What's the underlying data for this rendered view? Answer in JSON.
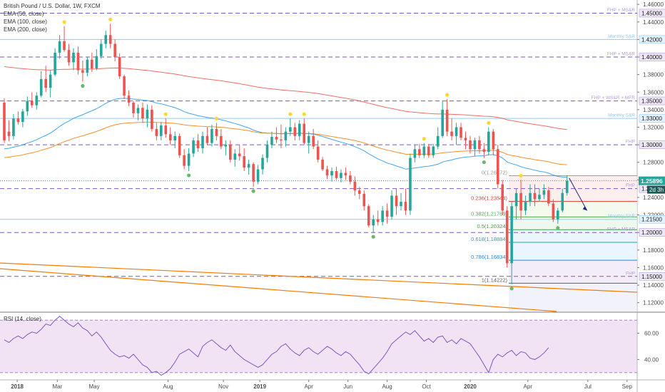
{
  "legend": {
    "title": "British Pound / U.S. Dollar, 1W, FXCM",
    "ema1": "EMA (50, close)",
    "ema2": "EMA (100, close)",
    "ema3": "EMA (200, close)"
  },
  "rsi_legend": "RSI (14, close)",
  "current_price_label": "1.25896",
  "countdown_label": "2d 3h",
  "colors": {
    "up": "#26a69a",
    "down": "#ef5350",
    "ema50": "#2196f3",
    "ema100": "#f57c00",
    "ema200": "#ef5350",
    "level_solid": "#90caf9",
    "level_dashed": "#7e57c2",
    "trendline": "#f57c00",
    "rsi": "#7e57c2",
    "rsi_band": "#e1bee7"
  },
  "chart_data": [
    {
      "type": "candlestick",
      "title": "British Pound / U.S. Dollar, 1W, FXCM",
      "x_ticks": [
        "2018",
        "Mar",
        "May",
        "Aug",
        "Nov",
        "2019",
        "Apr",
        "Jun",
        "Aug",
        "Oct",
        "2020",
        "Apr",
        "Jul",
        "Sep"
      ],
      "y_ticks": [
        "1.46000",
        "1.44000",
        "1.42000",
        "1.40000",
        "1.38000",
        "1.36000",
        "1.34000",
        "1.32000",
        "1.30000",
        "1.28000",
        "1.26000",
        "1.24000",
        "1.22000",
        "1.20000",
        "1.18000",
        "1.16000",
        "1.14000",
        "1.12000"
      ],
      "ylim": [
        1.11,
        1.465
      ],
      "highlighted_levels": [
        {
          "value": 1.45,
          "label": "1.45000",
          "style": "dashed",
          "tag": "FHP + MS&R"
        },
        {
          "value": 1.42,
          "label": "1.42000",
          "style": "solid",
          "tag": "Monthly S&R"
        },
        {
          "value": 1.4,
          "label": "1.40000",
          "style": "dashed",
          "tag": "FHP + MS&R"
        },
        {
          "value": 1.35,
          "label": "1.35000",
          "style": "dashed",
          "tag": "FHP + WS&R + MFR"
        },
        {
          "value": 1.33,
          "label": "1.33000",
          "style": "solid",
          "tag": "Monthly S&R"
        },
        {
          "value": 1.3,
          "label": "1.30000",
          "style": "dashed",
          "tag": "FHP"
        },
        {
          "value": 1.25,
          "label": "1.25000",
          "style": "dashed",
          "tag": "FHP"
        },
        {
          "value": 1.215,
          "label": "1.21500",
          "style": "solid",
          "tag": "Monthly S&R"
        },
        {
          "value": 1.2,
          "label": "1.20000",
          "style": "dashed",
          "tag": "FHP + MS&R"
        },
        {
          "value": 1.15,
          "label": "1.15000",
          "style": "dashed",
          "tag": "FHP"
        }
      ],
      "fibonacci": [
        {
          "label": "0(1.26472)",
          "value": 1.26472
        },
        {
          "label": "0.236(1.23544)",
          "value": 1.23544
        },
        {
          "label": "0.382(1.21769)",
          "value": 1.21769
        },
        {
          "label": "0.5(1.20324)",
          "value": 1.20324
        },
        {
          "label": "0.618(1.18884)",
          "value": 1.18884
        },
        {
          "label": "0.786(1.16834)",
          "value": 1.16834
        },
        {
          "label": "1(1.14222)",
          "value": 1.14222
        }
      ],
      "last_price": 1.25896,
      "candles": [
        [
          1.348,
          1.353,
          1.302,
          1.305
        ],
        [
          1.315,
          1.328,
          1.304,
          1.31
        ],
        [
          1.31,
          1.335,
          1.306,
          1.33
        ],
        [
          1.33,
          1.338,
          1.323,
          1.326
        ],
        [
          1.326,
          1.341,
          1.32,
          1.338
        ],
        [
          1.338,
          1.355,
          1.333,
          1.35
        ],
        [
          1.35,
          1.36,
          1.342,
          1.345
        ],
        [
          1.345,
          1.36,
          1.34,
          1.356
        ],
        [
          1.356,
          1.384,
          1.354,
          1.375
        ],
        [
          1.375,
          1.39,
          1.36,
          1.365
        ],
        [
          1.365,
          1.385,
          1.354,
          1.38
        ],
        [
          1.38,
          1.41,
          1.378,
          1.405
        ],
        [
          1.405,
          1.425,
          1.398,
          1.418
        ],
        [
          1.418,
          1.435,
          1.406,
          1.408
        ],
        [
          1.408,
          1.415,
          1.39,
          1.394
        ],
        [
          1.394,
          1.41,
          1.385,
          1.405
        ],
        [
          1.405,
          1.412,
          1.38,
          1.385
        ],
        [
          1.385,
          1.396,
          1.372,
          1.382
        ],
        [
          1.382,
          1.4,
          1.378,
          1.397
        ],
        [
          1.397,
          1.405,
          1.383,
          1.387
        ],
        [
          1.387,
          1.409,
          1.385,
          1.401
        ],
        [
          1.401,
          1.42,
          1.398,
          1.415
        ],
        [
          1.415,
          1.43,
          1.41,
          1.425
        ],
        [
          1.425,
          1.438,
          1.41,
          1.415
        ],
        [
          1.415,
          1.42,
          1.395,
          1.4
        ],
        [
          1.4,
          1.404,
          1.375,
          1.378
        ],
        [
          1.378,
          1.38,
          1.352,
          1.356
        ],
        [
          1.356,
          1.362,
          1.344,
          1.348
        ],
        [
          1.348,
          1.35,
          1.331,
          1.336
        ],
        [
          1.336,
          1.346,
          1.328,
          1.342
        ],
        [
          1.342,
          1.348,
          1.325,
          1.33
        ],
        [
          1.33,
          1.346,
          1.32,
          1.34
        ],
        [
          1.34,
          1.345,
          1.315,
          1.318
        ],
        [
          1.318,
          1.325,
          1.305,
          1.31
        ],
        [
          1.31,
          1.326,
          1.305,
          1.322
        ],
        [
          1.322,
          1.33,
          1.308,
          1.312
        ],
        [
          1.312,
          1.32,
          1.3,
          1.305
        ],
        [
          1.305,
          1.315,
          1.296,
          1.31
        ],
        [
          1.31,
          1.313,
          1.285,
          1.288
        ],
        [
          1.288,
          1.295,
          1.272,
          1.276
        ],
        [
          1.276,
          1.296,
          1.27,
          1.29
        ],
        [
          1.29,
          1.308,
          1.286,
          1.305
        ],
        [
          1.305,
          1.312,
          1.292,
          1.296
        ],
        [
          1.296,
          1.315,
          1.29,
          1.31
        ],
        [
          1.31,
          1.32,
          1.3,
          1.302
        ],
        [
          1.302,
          1.323,
          1.298,
          1.318
        ],
        [
          1.318,
          1.325,
          1.305,
          1.31
        ],
        [
          1.31,
          1.318,
          1.295,
          1.298
        ],
        [
          1.298,
          1.305,
          1.288,
          1.3
        ],
        [
          1.3,
          1.305,
          1.28,
          1.283
        ],
        [
          1.283,
          1.295,
          1.275,
          1.29
        ],
        [
          1.29,
          1.3,
          1.282,
          1.287
        ],
        [
          1.287,
          1.296,
          1.27,
          1.274
        ],
        [
          1.274,
          1.283,
          1.266,
          1.278
        ],
        [
          1.278,
          1.28,
          1.252,
          1.258
        ],
        [
          1.258,
          1.277,
          1.255,
          1.272
        ],
        [
          1.272,
          1.289,
          1.266,
          1.285
        ],
        [
          1.285,
          1.305,
          1.28,
          1.3
        ],
        [
          1.3,
          1.315,
          1.296,
          1.309
        ],
        [
          1.309,
          1.32,
          1.302,
          1.306
        ],
        [
          1.306,
          1.323,
          1.296,
          1.305
        ],
        [
          1.305,
          1.32,
          1.298,
          1.315
        ],
        [
          1.315,
          1.33,
          1.31,
          1.32
        ],
        [
          1.32,
          1.325,
          1.305,
          1.31
        ],
        [
          1.31,
          1.328,
          1.305,
          1.324
        ],
        [
          1.324,
          1.33,
          1.3,
          1.302
        ],
        [
          1.302,
          1.315,
          1.29,
          1.31
        ],
        [
          1.31,
          1.318,
          1.295,
          1.298
        ],
        [
          1.298,
          1.305,
          1.28,
          1.283
        ],
        [
          1.283,
          1.286,
          1.27,
          1.272
        ],
        [
          1.272,
          1.276,
          1.261,
          1.265
        ],
        [
          1.265,
          1.274,
          1.258,
          1.27
        ],
        [
          1.27,
          1.275,
          1.26,
          1.262
        ],
        [
          1.262,
          1.272,
          1.257,
          1.268
        ],
        [
          1.268,
          1.274,
          1.26,
          1.265
        ],
        [
          1.265,
          1.27,
          1.255,
          1.258
        ],
        [
          1.258,
          1.264,
          1.242,
          1.248
        ],
        [
          1.248,
          1.252,
          1.238,
          1.244
        ],
        [
          1.244,
          1.248,
          1.225,
          1.23
        ],
        [
          1.23,
          1.232,
          1.206,
          1.208
        ],
        [
          1.208,
          1.22,
          1.2,
          1.215
        ],
        [
          1.215,
          1.225,
          1.208,
          1.212
        ],
        [
          1.212,
          1.23,
          1.208,
          1.225
        ],
        [
          1.225,
          1.233,
          1.21,
          1.218
        ],
        [
          1.218,
          1.248,
          1.215,
          1.242
        ],
        [
          1.242,
          1.25,
          1.22,
          1.23
        ],
        [
          1.23,
          1.245,
          1.225,
          1.235
        ],
        [
          1.235,
          1.25,
          1.22,
          1.225
        ],
        [
          1.225,
          1.29,
          1.22,
          1.285
        ],
        [
          1.285,
          1.3,
          1.28,
          1.295
        ],
        [
          1.295,
          1.301,
          1.285,
          1.288
        ],
        [
          1.288,
          1.302,
          1.285,
          1.298
        ],
        [
          1.298,
          1.301,
          1.285,
          1.288
        ],
        [
          1.288,
          1.301,
          1.285,
          1.298
        ],
        [
          1.298,
          1.32,
          1.295,
          1.31
        ],
        [
          1.31,
          1.35,
          1.308,
          1.34
        ],
        [
          1.34,
          1.352,
          1.31,
          1.315
        ],
        [
          1.315,
          1.33,
          1.305,
          1.31
        ],
        [
          1.31,
          1.325,
          1.3,
          1.32
        ],
        [
          1.32,
          1.325,
          1.305,
          1.308
        ],
        [
          1.308,
          1.315,
          1.295,
          1.305
        ],
        [
          1.305,
          1.31,
          1.29,
          1.295
        ],
        [
          1.295,
          1.308,
          1.287,
          1.305
        ],
        [
          1.305,
          1.31,
          1.29,
          1.295
        ],
        [
          1.295,
          1.302,
          1.285,
          1.292
        ],
        [
          1.292,
          1.32,
          1.288,
          1.315
        ],
        [
          1.315,
          1.318,
          1.288,
          1.295
        ],
        [
          1.295,
          1.3,
          1.25,
          1.255
        ],
        [
          1.255,
          1.26,
          1.22,
          1.225
        ],
        [
          1.225,
          1.23,
          1.16,
          1.165
        ],
        [
          1.165,
          1.235,
          1.141,
          1.23
        ],
        [
          1.23,
          1.25,
          1.215,
          1.245
        ],
        [
          1.245,
          1.26,
          1.215,
          1.225
        ],
        [
          1.225,
          1.242,
          1.22,
          1.235
        ],
        [
          1.235,
          1.255,
          1.23,
          1.245
        ],
        [
          1.245,
          1.255,
          1.23,
          1.238
        ],
        [
          1.238,
          1.25,
          1.235,
          1.243
        ],
        [
          1.243,
          1.255,
          1.238,
          1.248
        ],
        [
          1.248,
          1.252,
          1.23,
          1.233
        ],
        [
          1.233,
          1.238,
          1.212,
          1.215
        ],
        [
          1.215,
          1.228,
          1.21,
          1.225
        ],
        [
          1.225,
          1.25,
          1.223,
          1.245
        ],
        [
          1.245,
          1.265,
          1.242,
          1.259
        ]
      ]
    },
    {
      "type": "line",
      "title": "RSI (14, close)",
      "y_ticks": [
        "60.00",
        "40.00"
      ],
      "ylim": [
        25,
        75
      ],
      "band": [
        30,
        70
      ],
      "values": [
        55,
        53,
        56,
        58,
        56,
        59,
        61,
        60,
        63,
        67,
        66,
        70,
        73,
        70,
        67,
        65,
        68,
        64,
        62,
        58,
        61,
        57,
        52,
        47,
        44,
        42,
        43,
        41,
        44,
        40,
        36,
        34,
        30,
        31,
        28,
        30,
        33,
        38,
        44,
        46,
        48,
        45,
        42,
        50,
        53,
        55,
        52,
        49,
        47,
        51,
        46,
        43,
        40,
        38,
        36,
        34,
        36,
        40,
        44,
        46,
        50,
        52,
        48,
        45,
        43,
        47,
        49,
        46,
        44,
        47,
        50,
        48,
        45,
        43,
        46,
        44,
        40,
        36,
        31,
        29,
        33,
        37,
        41,
        46,
        52,
        55,
        58,
        61,
        59,
        62,
        58,
        54,
        56,
        53,
        57,
        58,
        53,
        55,
        52,
        56,
        54,
        52,
        47,
        42,
        36,
        30,
        40,
        44,
        42,
        45,
        47,
        43,
        46,
        45,
        41,
        40,
        42,
        45,
        49
      ]
    }
  ]
}
